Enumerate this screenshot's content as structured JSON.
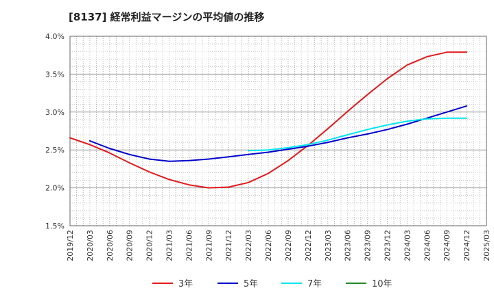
{
  "chart_data": {
    "type": "line",
    "title": "[8137]  経常利益マージンの平均値の推移",
    "xlabel": "",
    "ylabel": "",
    "x_ticks": [
      "2019/12",
      "2020/03",
      "2020/06",
      "2020/09",
      "2020/12",
      "2021/03",
      "2021/06",
      "2021/09",
      "2021/12",
      "2022/03",
      "2022/06",
      "2022/09",
      "2022/12",
      "2023/03",
      "2023/06",
      "2023/09",
      "2023/12",
      "2024/03",
      "2024/06",
      "2024/09",
      "2024/12",
      "2025/03"
    ],
    "y_ticks": [
      "1.5%",
      "2.0%",
      "2.5%",
      "3.0%",
      "3.5%",
      "4.0%"
    ],
    "ylim": [
      1.5,
      4.0
    ],
    "grid": true,
    "legend_position": "bottom",
    "series": [
      {
        "name": "3年",
        "color": "#e31a1c",
        "x": [
          "2019/12",
          "2020/03",
          "2020/06",
          "2020/09",
          "2020/12",
          "2021/03",
          "2021/06",
          "2021/09",
          "2021/12",
          "2022/03",
          "2022/06",
          "2022/09",
          "2022/12",
          "2023/03",
          "2023/06",
          "2023/09",
          "2023/12",
          "2024/03",
          "2024/06",
          "2024/09",
          "2024/12"
        ],
        "values": [
          2.66,
          2.57,
          2.46,
          2.33,
          2.21,
          2.11,
          2.04,
          2.0,
          2.01,
          2.07,
          2.19,
          2.36,
          2.56,
          2.78,
          3.01,
          3.23,
          3.44,
          3.62,
          3.73,
          3.79,
          3.79
        ]
      },
      {
        "name": "5年",
        "color": "#0000cd",
        "x": [
          "2020/03",
          "2020/06",
          "2020/09",
          "2020/12",
          "2021/03",
          "2021/06",
          "2021/09",
          "2021/12",
          "2022/03",
          "2022/06",
          "2022/09",
          "2022/12",
          "2023/03",
          "2023/06",
          "2023/09",
          "2023/12",
          "2024/03",
          "2024/06",
          "2024/09",
          "2024/12"
        ],
        "values": [
          2.62,
          2.52,
          2.44,
          2.38,
          2.35,
          2.36,
          2.38,
          2.41,
          2.44,
          2.47,
          2.51,
          2.55,
          2.6,
          2.66,
          2.71,
          2.77,
          2.84,
          2.92,
          3.0,
          3.08
        ]
      },
      {
        "name": "7年",
        "color": "#00e5ee",
        "x": [
          "2022/03",
          "2022/06",
          "2022/09",
          "2022/12",
          "2023/03",
          "2023/06",
          "2023/09",
          "2023/12",
          "2024/03",
          "2024/06",
          "2024/09",
          "2024/12"
        ],
        "values": [
          2.49,
          2.5,
          2.53,
          2.57,
          2.63,
          2.7,
          2.77,
          2.83,
          2.88,
          2.91,
          2.92,
          2.92
        ]
      },
      {
        "name": "10年",
        "color": "#228b22",
        "x": [],
        "values": []
      }
    ]
  }
}
